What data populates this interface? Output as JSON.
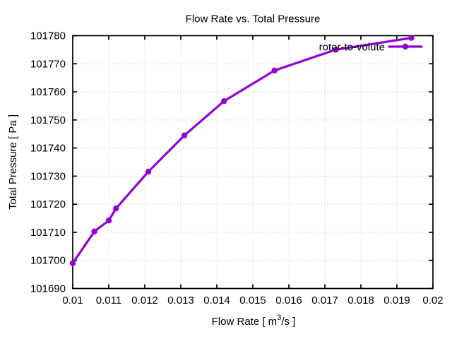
{
  "window_title": "Flow Rate vs. Total Pressure",
  "colors": {
    "background": "#ffffff",
    "frame": "#000000",
    "text": "#000000",
    "grid": "#c8c8c8",
    "series": "#9400d3"
  },
  "chart_data": {
    "type": "line",
    "title": "Flow Rate vs. Total Pressure",
    "xlabel": {
      "pre": "Flow Rate [ m",
      "sup": "3",
      "post": "/s ]"
    },
    "ylabel": "Total Pressure [ Pa ]",
    "xlim": [
      0.01,
      0.02
    ],
    "ylim": [
      101690,
      101780
    ],
    "xticks": [
      0.01,
      0.011,
      0.012,
      0.013,
      0.014,
      0.015,
      0.016,
      0.017,
      0.018,
      0.019,
      0.02
    ],
    "yticks": [
      101690,
      101700,
      101710,
      101720,
      101730,
      101740,
      101750,
      101760,
      101770,
      101780
    ],
    "grid": true,
    "grid_style": "dotted",
    "legend": {
      "label": "rotor-to-volute",
      "position": "top-right-inside"
    },
    "series": [
      {
        "name": "rotor-to-volute",
        "color": "#9400d3",
        "marker": "filled-circle",
        "line_width": 3.2,
        "x": [
          0.01,
          0.0106,
          0.011,
          0.0112,
          0.0121,
          0.0131,
          0.0142,
          0.0156,
          0.0173,
          0.0194
        ],
        "y": [
          101699.0,
          101710.3,
          101714.2,
          101718.5,
          101731.6,
          101744.5,
          101756.7,
          101767.6,
          101775.0,
          101779.2
        ]
      }
    ]
  }
}
